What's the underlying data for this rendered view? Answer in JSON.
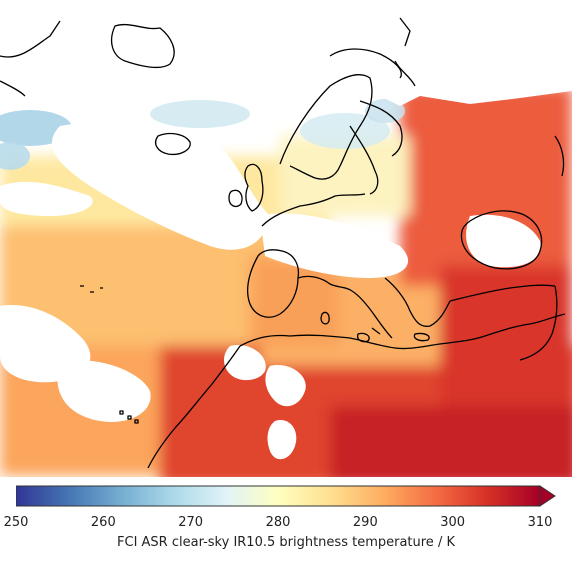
{
  "colorbar": {
    "label": "FCI ASR clear-sky IR10.5 brightness temperature / K",
    "min": 250,
    "max": 310,
    "ticks": [
      "250",
      "260",
      "270",
      "280",
      "290",
      "300",
      "310"
    ],
    "extend": "max",
    "colormap": "RdYlBu_r",
    "stops": [
      "#313695",
      "#4575b4",
      "#74add1",
      "#abd9e9",
      "#e0f3f8",
      "#ffffbf",
      "#fee090",
      "#fdae61",
      "#f46d43",
      "#d73027",
      "#a50026"
    ]
  },
  "map": {
    "region": "Europe, North Africa and North Atlantic",
    "coastline_color": "#000000",
    "cloud_mask_color": "#ffffff"
  }
}
